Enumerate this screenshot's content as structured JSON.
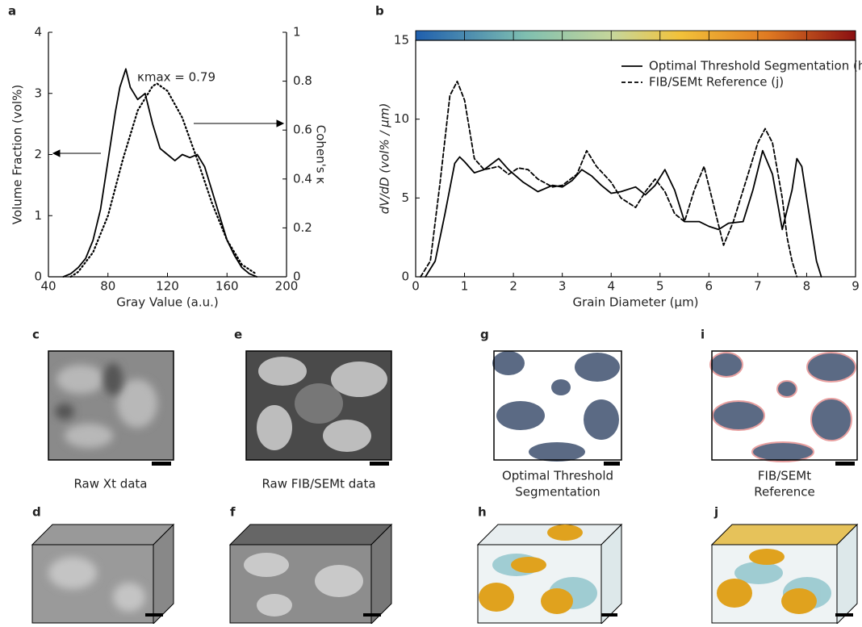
{
  "chart_data": [
    {
      "type": "line",
      "panel": "a",
      "xlabel": "Gray Value (a.u.)",
      "ylabel": "Volume Fraction (vol%)",
      "y2label": "Cohen's κ",
      "xlim": [
        40,
        200
      ],
      "xticks": [
        40,
        80,
        120,
        160,
        200
      ],
      "ylim": [
        0,
        4
      ],
      "yticks": [
        0,
        1,
        2,
        3,
        4
      ],
      "y2lim": [
        0,
        1
      ],
      "y2ticks": [
        0,
        0.2,
        0.4,
        0.6,
        0.8,
        1
      ],
      "annotation": {
        "text": "κmax = 0.79",
        "color": "#e8141c"
      },
      "series": [
        {
          "color": "#000000",
          "style": "step",
          "x": [
            50,
            55,
            60,
            65,
            70,
            75,
            80,
            85,
            88,
            92,
            95,
            100,
            105,
            110,
            115,
            120,
            125,
            130,
            135,
            140,
            145,
            150,
            155,
            160,
            165,
            170,
            175,
            180
          ],
          "values": [
            0,
            0.05,
            0.15,
            0.3,
            0.6,
            1.1,
            1.9,
            2.7,
            3.1,
            3.4,
            3.1,
            2.9,
            3.0,
            2.5,
            2.1,
            2.0,
            1.9,
            2.0,
            1.95,
            2.0,
            1.8,
            1.4,
            1.0,
            0.6,
            0.35,
            0.15,
            0.05,
            0
          ]
        },
        {
          "color": "#000000",
          "style": "dotted",
          "axis": "y2",
          "x": [
            55,
            60,
            70,
            80,
            90,
            100,
            110,
            113,
            120,
            130,
            140,
            150,
            160,
            170,
            180
          ],
          "values": [
            0,
            0.02,
            0.1,
            0.25,
            0.48,
            0.68,
            0.78,
            0.79,
            0.76,
            0.65,
            0.48,
            0.3,
            0.15,
            0.05,
            0.01
          ]
        }
      ]
    },
    {
      "type": "line",
      "panel": "b",
      "xlabel": "Grain Diameter (μm)",
      "ylabel": "dV/dD (vol% / μm)",
      "xlim": [
        0,
        9
      ],
      "xticks": [
        0,
        1,
        2,
        3,
        4,
        5,
        6,
        7,
        8,
        9
      ],
      "ylim": [
        0,
        15
      ],
      "yticks": [
        0,
        5,
        10,
        15
      ],
      "legend": "upper right",
      "series": [
        {
          "name": "Optimal Threshold Segmentation (h)",
          "color": "#000000",
          "style": "solid",
          "x": [
            0.2,
            0.4,
            0.6,
            0.8,
            0.9,
            1.0,
            1.2,
            1.4,
            1.7,
            1.9,
            2.2,
            2.5,
            2.8,
            3.0,
            3.2,
            3.4,
            3.6,
            3.8,
            4.0,
            4.2,
            4.5,
            4.7,
            4.9,
            5.1,
            5.3,
            5.5,
            5.8,
            6.0,
            6.2,
            6.4,
            6.7,
            6.9,
            7.1,
            7.3,
            7.5,
            7.7,
            7.8,
            7.9,
            8.0,
            8.1,
            8.2,
            8.3
          ],
          "values": [
            0,
            1,
            4,
            7.2,
            7.6,
            7.3,
            6.6,
            6.8,
            7.5,
            6.8,
            6.0,
            5.4,
            5.8,
            5.7,
            6.1,
            6.8,
            6.4,
            5.8,
            5.3,
            5.4,
            5.7,
            5.2,
            5.8,
            6.8,
            5.5,
            3.5,
            3.5,
            3.2,
            3.0,
            3.4,
            3.5,
            5.5,
            8.0,
            6.5,
            3.0,
            5.5,
            7.5,
            7.0,
            5.0,
            3.0,
            1,
            0
          ]
        },
        {
          "name": "FIB/SEMt Reference (j)",
          "color": "#000000",
          "style": "dashed",
          "x": [
            0.1,
            0.3,
            0.5,
            0.7,
            0.85,
            1.0,
            1.2,
            1.4,
            1.7,
            1.9,
            2.1,
            2.3,
            2.5,
            2.8,
            3.0,
            3.3,
            3.5,
            3.7,
            4.0,
            4.2,
            4.5,
            4.7,
            4.9,
            5.1,
            5.3,
            5.5,
            5.7,
            5.9,
            6.1,
            6.3,
            6.5,
            6.8,
            7.0,
            7.15,
            7.3,
            7.5,
            7.6,
            7.7,
            7.8
          ],
          "values": [
            0,
            1,
            6,
            11.5,
            12.4,
            11.2,
            7.5,
            6.8,
            7.0,
            6.5,
            6.9,
            6.8,
            6.2,
            5.7,
            5.8,
            6.5,
            8.0,
            7.0,
            6.0,
            5.0,
            4.4,
            5.4,
            6.2,
            5.4,
            4.0,
            3.5,
            5.5,
            7.0,
            4.5,
            2.0,
            3.5,
            6.5,
            8.5,
            9.4,
            8.5,
            5.0,
            2.5,
            1.0,
            0
          ]
        }
      ]
    }
  ],
  "images": [
    {
      "letter": "c",
      "caption": [
        "Raw Xt data"
      ]
    },
    {
      "letter": "e",
      "caption": [
        "Raw FIB/SEMt data"
      ]
    },
    {
      "letter": "g",
      "caption": [
        "Optimal Threshold",
        "Segmentation"
      ]
    },
    {
      "letter": "i",
      "caption": [
        "FIB/SEMt",
        "Reference"
      ]
    },
    {
      "letter": "d"
    },
    {
      "letter": "f"
    },
    {
      "letter": "h"
    },
    {
      "letter": "j"
    }
  ]
}
